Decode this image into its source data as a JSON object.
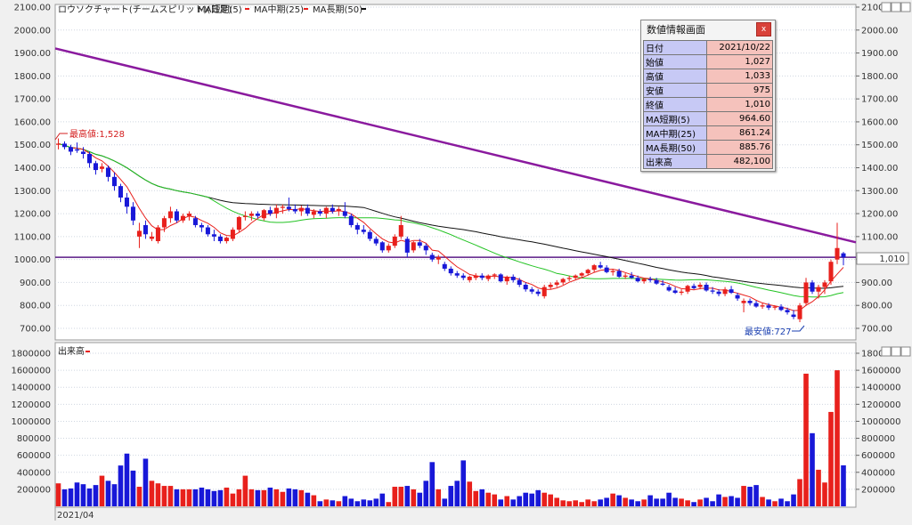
{
  "legend": {
    "title": "ロウソクチャート(チームスピリット)(日足)",
    "ma5": "MA短期(5)",
    "ma25": "MA中期(25)",
    "ma50": "MA長期(50)",
    "volume": "出来高"
  },
  "annotations": {
    "high_label": "最高値:1,528",
    "low_label": "最安値:727",
    "last_price": "1,010",
    "date_label": "2021/04"
  },
  "info_panel": {
    "title": "数値情報画面",
    "close": "x",
    "rows": [
      {
        "key": "日付",
        "value": "2021/10/22"
      },
      {
        "key": "始値",
        "value": "1,027"
      },
      {
        "key": "高値",
        "value": "1,033"
      },
      {
        "key": "安値",
        "value": "975"
      },
      {
        "key": "終値",
        "value": "1,010"
      },
      {
        "key": "MA短期(5)",
        "value": "964.60"
      },
      {
        "key": "MA中期(25)",
        "value": "861.24"
      },
      {
        "key": "MA長期(50)",
        "value": "885.76"
      },
      {
        "key": "出来高",
        "value": "482,100"
      }
    ]
  },
  "colors": {
    "up": "#e8201c",
    "down": "#1818d8",
    "ma5": "#e8201c",
    "ma25": "#22c322",
    "ma50": "#111111",
    "trendline": "#8a1a9e",
    "hline": "#5a1a86",
    "bg": "#ffffff"
  },
  "chart_data": {
    "type": "candlestick",
    "price_axis": {
      "ylim": [
        640,
        2100
      ],
      "ticks": [
        700,
        800,
        900,
        1000,
        1100,
        1200,
        1300,
        1400,
        1500,
        1600,
        1700,
        1800,
        1900,
        2000,
        2100
      ],
      "tick_labels": [
        "700.00",
        "800.00",
        "900.00",
        "1000.00",
        "1100.00",
        "1200.00",
        "1300.00",
        "1400.00",
        "1500.00",
        "1600.00",
        "1700.00",
        "1800.00",
        "1900.00",
        "2000.00",
        "2100.00"
      ]
    },
    "volume_axis": {
      "ylim": [
        0,
        1800000
      ],
      "ticks": [
        200000,
        400000,
        600000,
        800000,
        1000000,
        1200000,
        1400000,
        1600000,
        1800000
      ],
      "tick_labels": [
        "200000",
        "400000",
        "600000",
        "800000",
        "1000000",
        "1200000",
        "1400000",
        "1600000",
        "1800000"
      ]
    },
    "horizontal_line": 1010,
    "trendline": [
      {
        "bar": 0,
        "price": 1920
      },
      {
        "bar": 126,
        "price": 1075
      }
    ],
    "candles": [
      [
        1500,
        1528,
        1480,
        1505
      ],
      [
        1505,
        1515,
        1480,
        1490
      ],
      [
        1490,
        1500,
        1455,
        1470
      ],
      [
        1480,
        1510,
        1465,
        1475
      ],
      [
        1470,
        1490,
        1440,
        1460
      ],
      [
        1460,
        1470,
        1400,
        1420
      ],
      [
        1420,
        1430,
        1370,
        1390
      ],
      [
        1395,
        1420,
        1380,
        1405
      ],
      [
        1400,
        1410,
        1340,
        1360
      ],
      [
        1360,
        1380,
        1300,
        1320
      ],
      [
        1320,
        1330,
        1250,
        1270
      ],
      [
        1270,
        1290,
        1200,
        1230
      ],
      [
        1230,
        1250,
        1150,
        1170
      ],
      [
        1100,
        1160,
        1050,
        1125
      ],
      [
        1150,
        1170,
        1090,
        1110
      ],
      [
        1090,
        1120,
        1080,
        1100
      ],
      [
        1080,
        1150,
        1070,
        1140
      ],
      [
        1140,
        1190,
        1120,
        1180
      ],
      [
        1180,
        1230,
        1160,
        1210
      ],
      [
        1210,
        1220,
        1160,
        1170
      ],
      [
        1170,
        1200,
        1160,
        1190
      ],
      [
        1190,
        1210,
        1170,
        1200
      ],
      [
        1180,
        1190,
        1140,
        1150
      ],
      [
        1150,
        1160,
        1120,
        1140
      ],
      [
        1140,
        1150,
        1100,
        1110
      ],
      [
        1110,
        1130,
        1080,
        1100
      ],
      [
        1100,
        1110,
        1070,
        1080
      ],
      [
        1080,
        1100,
        1070,
        1095
      ],
      [
        1090,
        1140,
        1080,
        1130
      ],
      [
        1130,
        1190,
        1120,
        1185
      ],
      [
        1185,
        1210,
        1170,
        1190
      ],
      [
        1190,
        1210,
        1170,
        1200
      ],
      [
        1200,
        1210,
        1180,
        1190
      ],
      [
        1180,
        1220,
        1170,
        1215
      ],
      [
        1215,
        1230,
        1190,
        1200
      ],
      [
        1200,
        1240,
        1180,
        1225
      ],
      [
        1225,
        1240,
        1200,
        1230
      ],
      [
        1230,
        1270,
        1210,
        1220
      ],
      [
        1220,
        1240,
        1200,
        1210
      ],
      [
        1210,
        1235,
        1190,
        1225
      ],
      [
        1225,
        1240,
        1190,
        1200
      ],
      [
        1195,
        1220,
        1180,
        1210
      ],
      [
        1210,
        1220,
        1190,
        1200
      ],
      [
        1200,
        1230,
        1180,
        1225
      ],
      [
        1225,
        1240,
        1200,
        1210
      ],
      [
        1210,
        1230,
        1190,
        1220
      ],
      [
        1210,
        1250,
        1180,
        1190
      ],
      [
        1190,
        1200,
        1140,
        1150
      ],
      [
        1150,
        1160,
        1110,
        1130
      ],
      [
        1130,
        1150,
        1110,
        1120
      ],
      [
        1120,
        1130,
        1080,
        1090
      ],
      [
        1090,
        1100,
        1060,
        1070
      ],
      [
        1075,
        1080,
        1030,
        1040
      ],
      [
        1040,
        1070,
        1030,
        1060
      ],
      [
        1060,
        1110,
        1050,
        1100
      ],
      [
        1100,
        1190,
        1090,
        1150
      ],
      [
        1090,
        1100,
        1010,
        1030
      ],
      [
        1040,
        1080,
        1030,
        1075
      ],
      [
        1075,
        1090,
        1050,
        1060
      ],
      [
        1060,
        1070,
        1020,
        1040
      ],
      [
        1020,
        1030,
        990,
        1000
      ],
      [
        1000,
        1020,
        980,
        1010
      ],
      [
        980,
        990,
        950,
        960
      ],
      [
        960,
        970,
        930,
        940
      ],
      [
        940,
        950,
        920,
        930
      ],
      [
        930,
        940,
        910,
        920
      ],
      [
        910,
        930,
        900,
        925
      ],
      [
        920,
        940,
        910,
        930
      ],
      [
        930,
        940,
        910,
        920
      ],
      [
        915,
        935,
        905,
        930
      ],
      [
        930,
        940,
        915,
        935
      ],
      [
        935,
        940,
        900,
        905
      ],
      [
        905,
        930,
        890,
        925
      ],
      [
        925,
        935,
        900,
        910
      ],
      [
        910,
        920,
        880,
        890
      ],
      [
        890,
        900,
        860,
        870
      ],
      [
        870,
        880,
        850,
        860
      ],
      [
        860,
        870,
        840,
        850
      ],
      [
        840,
        890,
        830,
        880
      ],
      [
        880,
        900,
        870,
        890
      ],
      [
        890,
        910,
        880,
        900
      ],
      [
        900,
        920,
        890,
        915
      ],
      [
        915,
        930,
        905,
        920
      ],
      [
        920,
        935,
        910,
        930
      ],
      [
        930,
        945,
        920,
        940
      ],
      [
        940,
        960,
        930,
        955
      ],
      [
        955,
        980,
        945,
        975
      ],
      [
        975,
        990,
        960,
        965
      ],
      [
        965,
        975,
        940,
        945
      ],
      [
        945,
        960,
        930,
        950
      ],
      [
        950,
        960,
        920,
        925
      ],
      [
        925,
        940,
        915,
        930
      ],
      [
        930,
        945,
        915,
        920
      ],
      [
        920,
        930,
        900,
        905
      ],
      [
        905,
        920,
        895,
        915
      ],
      [
        915,
        925,
        900,
        910
      ],
      [
        910,
        920,
        890,
        895
      ],
      [
        895,
        910,
        885,
        890
      ],
      [
        880,
        890,
        860,
        865
      ],
      [
        865,
        880,
        850,
        855
      ],
      [
        855,
        870,
        845,
        860
      ],
      [
        860,
        890,
        850,
        885
      ],
      [
        885,
        895,
        870,
        875
      ],
      [
        880,
        900,
        870,
        890
      ],
      [
        890,
        900,
        860,
        865
      ],
      [
        865,
        880,
        850,
        860
      ],
      [
        860,
        870,
        840,
        850
      ],
      [
        850,
        880,
        840,
        870
      ],
      [
        870,
        885,
        850,
        855
      ],
      [
        845,
        855,
        820,
        830
      ],
      [
        810,
        830,
        770,
        820
      ],
      [
        820,
        830,
        800,
        810
      ],
      [
        810,
        820,
        790,
        795
      ],
      [
        795,
        810,
        785,
        800
      ],
      [
        800,
        810,
        780,
        790
      ],
      [
        790,
        800,
        780,
        795
      ],
      [
        795,
        805,
        775,
        780
      ],
      [
        780,
        790,
        760,
        770
      ],
      [
        760,
        780,
        740,
        750
      ],
      [
        740,
        810,
        727,
        800
      ],
      [
        810,
        920,
        800,
        900
      ],
      [
        900,
        910,
        850,
        860
      ],
      [
        860,
        890,
        830,
        880
      ],
      [
        880,
        910,
        850,
        900
      ],
      [
        905,
        1000,
        890,
        990
      ],
      [
        1000,
        1160,
        980,
        1050
      ],
      [
        1027,
        1033,
        975,
        1010
      ]
    ],
    "volume": [
      270000,
      200000,
      210000,
      280000,
      260000,
      210000,
      250000,
      360000,
      300000,
      260000,
      480000,
      620000,
      420000,
      230000,
      560000,
      300000,
      270000,
      240000,
      240000,
      200000,
      200000,
      200000,
      200000,
      220000,
      200000,
      180000,
      190000,
      220000,
      150000,
      200000,
      360000,
      200000,
      190000,
      190000,
      220000,
      200000,
      170000,
      210000,
      200000,
      190000,
      160000,
      130000,
      60000,
      80000,
      70000,
      60000,
      120000,
      90000,
      60000,
      80000,
      70000,
      90000,
      150000,
      50000,
      230000,
      230000,
      240000,
      200000,
      160000,
      300000,
      520000,
      200000,
      90000,
      240000,
      300000,
      540000,
      290000,
      180000,
      200000,
      160000,
      140000,
      80000,
      120000,
      80000,
      120000,
      160000,
      150000,
      190000,
      160000,
      140000,
      100000,
      70000,
      60000,
      70000,
      50000,
      80000,
      60000,
      80000,
      100000,
      150000,
      130000,
      100000,
      80000,
      60000,
      80000,
      130000,
      90000,
      90000,
      160000,
      100000,
      90000,
      70000,
      50000,
      80000,
      100000,
      60000,
      140000,
      110000,
      120000,
      100000,
      240000,
      230000,
      250000,
      110000,
      80000,
      60000,
      90000,
      60000,
      140000,
      320000,
      1560000,
      860000,
      430000,
      280000,
      1110000,
      1600000,
      482100
    ]
  }
}
